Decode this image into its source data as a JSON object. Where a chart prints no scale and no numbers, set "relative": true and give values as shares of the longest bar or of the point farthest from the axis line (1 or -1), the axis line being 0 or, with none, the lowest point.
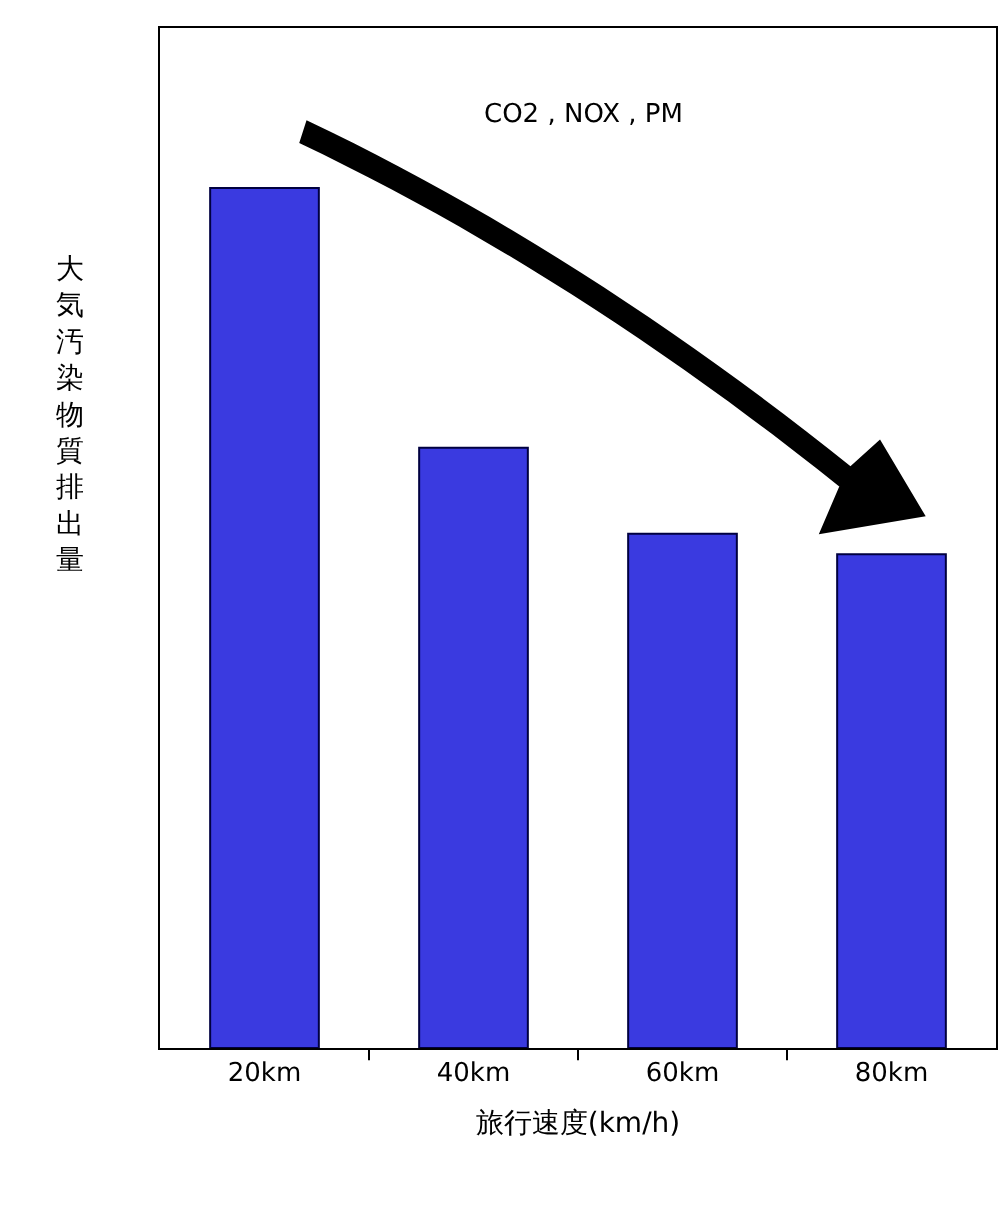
{
  "chart_data": {
    "type": "bar",
    "relative": true,
    "categories": [
      "20km",
      "40km",
      "60km",
      "80km"
    ],
    "values": [
      1,
      0.698,
      0.598,
      0.574
    ],
    "color": "#3a3ae0",
    "xlabel": "旅行速度(km/h)",
    "ylabel": "大気汚染物質排出量",
    "annotations": [
      "CO2 , NOX , PM"
    ],
    "legend": false
  }
}
